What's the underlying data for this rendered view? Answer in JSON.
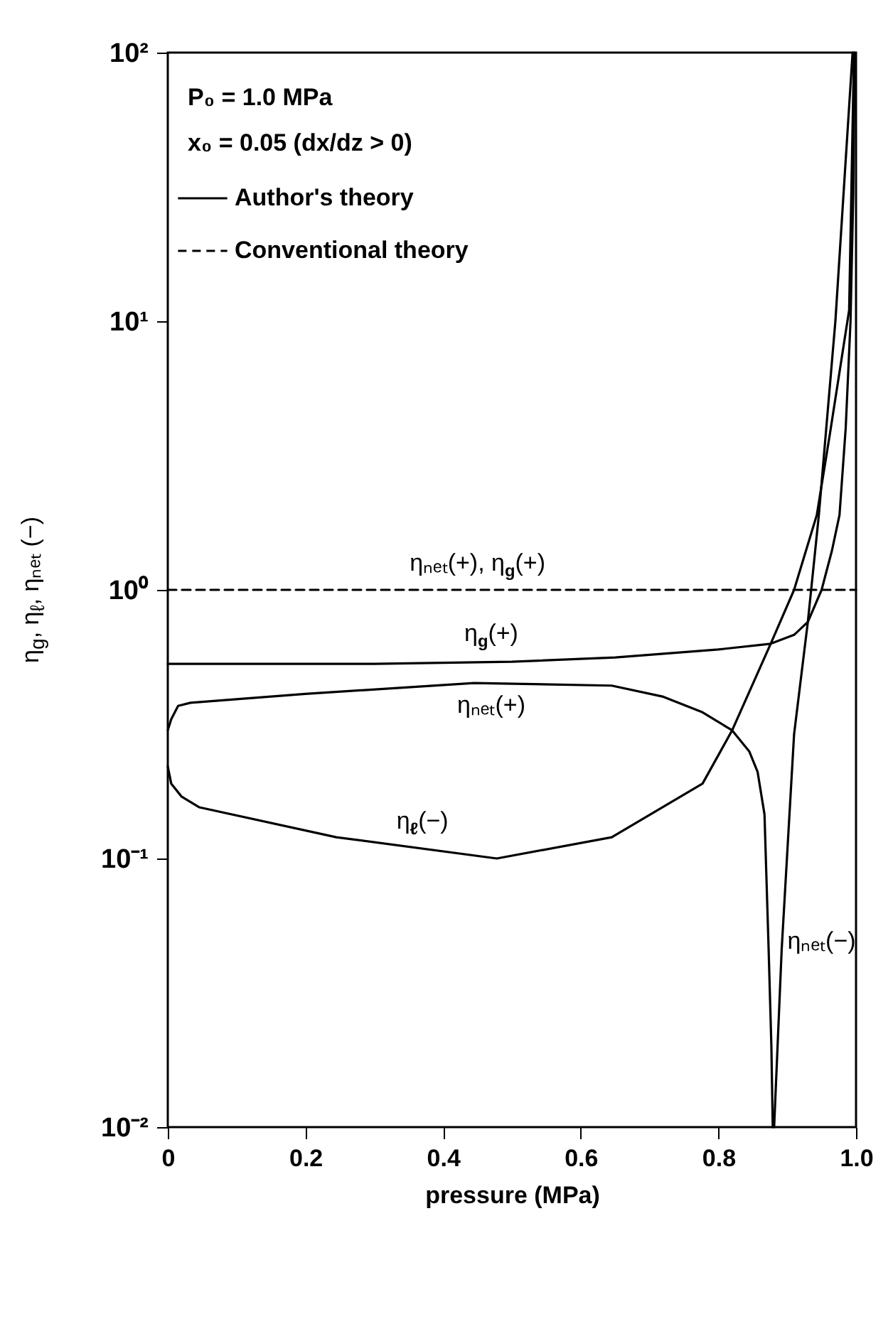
{
  "chart_data": {
    "type": "line",
    "xlabel": "pressure (MPa)",
    "ylabel": "η$_{g}$, η$_{ℓ}$, ηₙₑₜ (−)",
    "xlim": [
      0,
      1
    ],
    "xticks": [
      0,
      0.2,
      0.4,
      0.6,
      0.8,
      {
        "value": 1,
        "label": "1.0"
      }
    ],
    "ylim": [
      0.01,
      100
    ],
    "yticks": [
      {
        "value": 0.01,
        "label": "10⁻²"
      },
      {
        "value": 0.1,
        "label": "10⁻¹"
      },
      {
        "value": 1,
        "label": "10⁰"
      },
      {
        "value": 10,
        "label": "10¹"
      },
      {
        "value": 100,
        "label": "10²"
      }
    ],
    "log": "y",
    "grid": false,
    "legend": "top left",
    "marker": "none",
    "series": [
      {
        "name": "Author's theory",
        "color": "#000000",
        "line_style": "solid",
        "x": [
          0,
          0.1,
          0.3,
          0.5,
          0.65,
          0.8,
          0.876,
          0.91,
          0.93,
          0.95,
          0.965,
          0.976,
          0.985,
          0.992,
          0.996,
          0.998
        ],
        "values": [
          0.53,
          0.53,
          0.53,
          0.54,
          0.56,
          0.6,
          0.63,
          0.68,
          0.76,
          1.0,
          1.4,
          1.9,
          4,
          10,
          30,
          100
        ]
      },
      {
        "color": "#000000",
        "line_style": "solid",
        "x": [
          0,
          0.005,
          0.015,
          0.033,
          0.2,
          0.445,
          0.645,
          0.72,
          0.777,
          0.82,
          0.845,
          0.857,
          0.867,
          0.873,
          0.877,
          0.879
        ],
        "values": [
          0.3,
          0.33,
          0.37,
          0.38,
          0.41,
          0.45,
          0.44,
          0.4,
          0.35,
          0.3,
          0.25,
          0.21,
          0.146,
          0.046,
          0.02,
          0.01
        ]
      },
      {
        "color": "#000000",
        "line_style": "solid",
        "x": [
          0,
          0.005,
          0.02,
          0.046,
          0.245,
          0.478,
          0.645,
          0.777,
          0.82,
          0.876,
          0.91,
          0.943,
          0.962,
          0.99,
          0.997
        ],
        "values": [
          0.22,
          0.19,
          0.17,
          0.155,
          0.12,
          0.1,
          0.12,
          0.19,
          0.3,
          0.63,
          1.0,
          1.9,
          3.8,
          11,
          100
        ]
      },
      {
        "color": "#000000",
        "line_style": "solid",
        "x": [
          0.881,
          0.892,
          0.91,
          0.93,
          0.946,
          0.97,
          0.995
        ],
        "values": [
          0.01,
          0.046,
          0.29,
          0.76,
          1.9,
          10,
          100
        ]
      },
      {
        "name": "Conventional theory",
        "color": "#000000",
        "line_style": "dashed",
        "x": [
          0,
          1
        ],
        "values": [
          1,
          1
        ]
      }
    ],
    "annotations": [
      "P₀ = 1.0 MPa",
      "x₀ = 0.05 (dx/dz > 0)",
      "ηₙₑₜ(+), η$_{g}$(+)",
      "η$_{g}$(+)",
      "ηₙₑₜ(+)",
      "η$_{ℓ}$(−)",
      "ηₙₑₜ(−)"
    ]
  }
}
